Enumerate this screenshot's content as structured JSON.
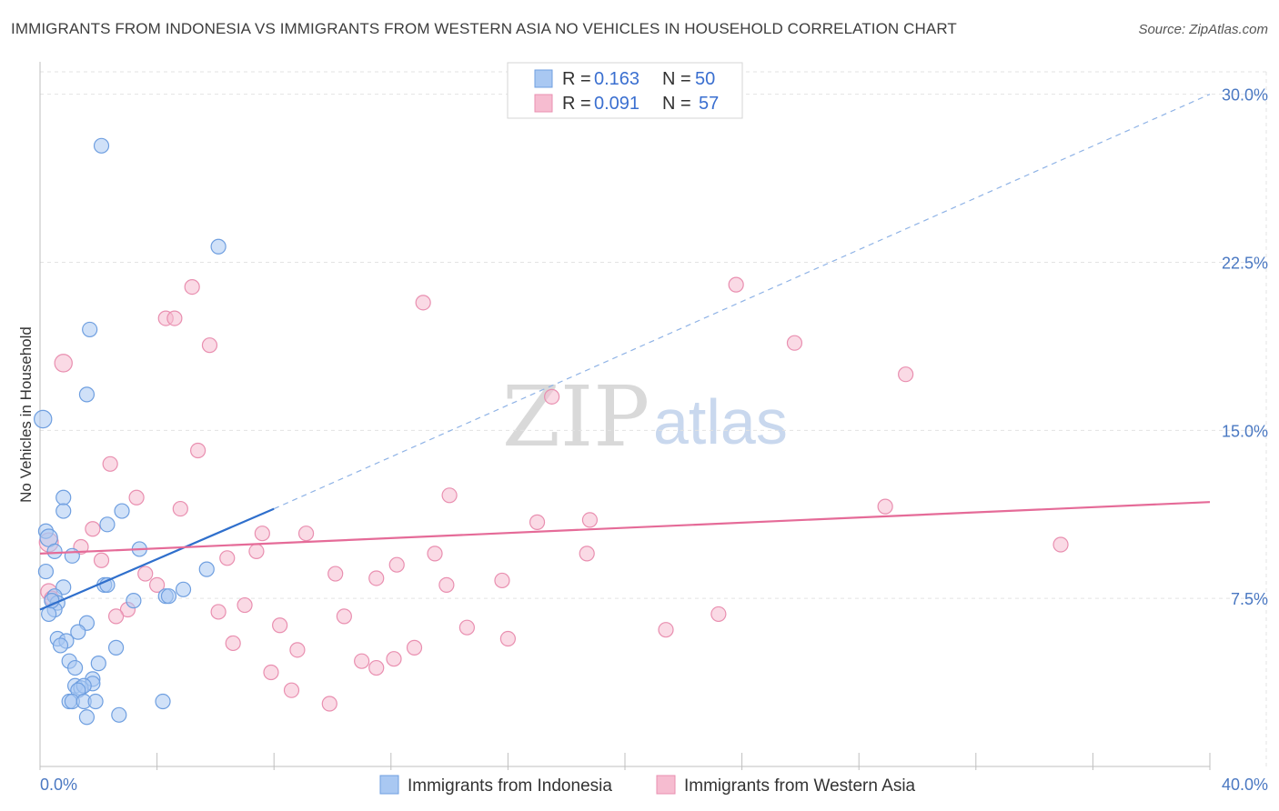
{
  "title": "IMMIGRANTS FROM INDONESIA VS IMMIGRANTS FROM WESTERN ASIA NO VEHICLES IN HOUSEHOLD CORRELATION CHART",
  "source": "Source: ZipAtlas.com",
  "watermark": {
    "zip": "ZIP",
    "atlas": "atlas"
  },
  "colors": {
    "blue_fill": "#a9c8f2",
    "blue_stroke": "#6f9fe0",
    "blue_line": "#2f6fcc",
    "pink_fill": "#f6bcd0",
    "pink_stroke": "#e98fb0",
    "pink_line": "#e56b98",
    "axis_text": "#4a78c2",
    "grid": "#e3e3e3"
  },
  "legend": {
    "r_label": "R =",
    "n_label": "N =",
    "rows": [
      {
        "r": "0.163",
        "n": "50",
        "color": "blue"
      },
      {
        "r": "0.091",
        "n": "57",
        "color": "pink"
      }
    ]
  },
  "chart_data": {
    "type": "scatter",
    "title": "IMMIGRANTS FROM INDONESIA VS IMMIGRANTS FROM WESTERN ASIA NO VEHICLES IN HOUSEHOLD CORRELATION CHART",
    "xlabel": "",
    "ylabel": "No Vehicles in Household",
    "xlim": [
      0,
      40
    ],
    "ylim": [
      0,
      31
    ],
    "x_tick_labels": [
      "0.0%",
      "40.0%"
    ],
    "y_ticks": [
      7.5,
      15.0,
      22.5,
      30.0
    ],
    "y_tick_labels": [
      "7.5%",
      "15.0%",
      "22.5%",
      "30.0%"
    ],
    "grid": true,
    "legend_position": "top-center",
    "series": [
      {
        "name": "Immigrants from Indonesia",
        "color": "blue",
        "trend": {
          "x0": 0.0,
          "y0": 7.0,
          "x1": 8.0,
          "y1": 11.5,
          "dashed_to_x": 40.0,
          "dashed_to_y": 30.0
        },
        "points": [
          {
            "x": 0.1,
            "y": 15.5,
            "s": 1.2
          },
          {
            "x": 2.1,
            "y": 27.7,
            "s": 1
          },
          {
            "x": 6.1,
            "y": 23.2,
            "s": 1
          },
          {
            "x": 1.7,
            "y": 19.5,
            "s": 1
          },
          {
            "x": 1.6,
            "y": 16.6,
            "s": 1
          },
          {
            "x": 0.8,
            "y": 12.0,
            "s": 1
          },
          {
            "x": 0.8,
            "y": 11.4,
            "s": 1
          },
          {
            "x": 2.8,
            "y": 11.4,
            "s": 1
          },
          {
            "x": 0.2,
            "y": 10.5,
            "s": 1
          },
          {
            "x": 2.3,
            "y": 10.8,
            "s": 1
          },
          {
            "x": 0.3,
            "y": 10.2,
            "s": 1.2
          },
          {
            "x": 0.5,
            "y": 9.6,
            "s": 1
          },
          {
            "x": 1.1,
            "y": 9.4,
            "s": 1
          },
          {
            "x": 3.4,
            "y": 9.7,
            "s": 1
          },
          {
            "x": 0.2,
            "y": 8.7,
            "s": 1
          },
          {
            "x": 5.7,
            "y": 8.8,
            "s": 1
          },
          {
            "x": 2.2,
            "y": 8.1,
            "s": 1
          },
          {
            "x": 2.3,
            "y": 8.1,
            "s": 1
          },
          {
            "x": 0.8,
            "y": 8.0,
            "s": 1
          },
          {
            "x": 4.9,
            "y": 7.9,
            "s": 1
          },
          {
            "x": 0.5,
            "y": 7.6,
            "s": 1
          },
          {
            "x": 0.6,
            "y": 7.3,
            "s": 1
          },
          {
            "x": 3.2,
            "y": 7.4,
            "s": 1
          },
          {
            "x": 4.3,
            "y": 7.6,
            "s": 1
          },
          {
            "x": 4.4,
            "y": 7.6,
            "s": 1
          },
          {
            "x": 0.5,
            "y": 7.0,
            "s": 1
          },
          {
            "x": 0.3,
            "y": 6.8,
            "s": 1
          },
          {
            "x": 1.6,
            "y": 6.4,
            "s": 1
          },
          {
            "x": 1.3,
            "y": 6.0,
            "s": 1
          },
          {
            "x": 0.6,
            "y": 5.7,
            "s": 1
          },
          {
            "x": 0.9,
            "y": 5.6,
            "s": 1
          },
          {
            "x": 0.7,
            "y": 5.4,
            "s": 1
          },
          {
            "x": 2.6,
            "y": 5.3,
            "s": 1
          },
          {
            "x": 1.0,
            "y": 4.7,
            "s": 1
          },
          {
            "x": 1.2,
            "y": 4.4,
            "s": 1
          },
          {
            "x": 2.0,
            "y": 4.6,
            "s": 1
          },
          {
            "x": 1.8,
            "y": 3.9,
            "s": 1
          },
          {
            "x": 1.2,
            "y": 3.6,
            "s": 1
          },
          {
            "x": 1.8,
            "y": 3.7,
            "s": 1
          },
          {
            "x": 1.4,
            "y": 3.5,
            "s": 1
          },
          {
            "x": 1.5,
            "y": 3.6,
            "s": 1
          },
          {
            "x": 1.3,
            "y": 3.4,
            "s": 1
          },
          {
            "x": 1.0,
            "y": 2.9,
            "s": 1
          },
          {
            "x": 1.1,
            "y": 2.9,
            "s": 1
          },
          {
            "x": 1.5,
            "y": 2.9,
            "s": 1
          },
          {
            "x": 1.9,
            "y": 2.9,
            "s": 1
          },
          {
            "x": 4.2,
            "y": 2.9,
            "s": 1
          },
          {
            "x": 1.6,
            "y": 2.2,
            "s": 1
          },
          {
            "x": 2.7,
            "y": 2.3,
            "s": 1
          },
          {
            "x": 0.4,
            "y": 7.4,
            "s": 1
          }
        ]
      },
      {
        "name": "Immigrants from Western Asia",
        "color": "pink",
        "trend": {
          "x0": 0.0,
          "y0": 9.5,
          "x1": 40.0,
          "y1": 11.8
        },
        "points": [
          {
            "x": 0.8,
            "y": 18.0,
            "s": 1.2
          },
          {
            "x": 5.2,
            "y": 21.4,
            "s": 1
          },
          {
            "x": 4.3,
            "y": 20.0,
            "s": 1
          },
          {
            "x": 4.6,
            "y": 20.0,
            "s": 1
          },
          {
            "x": 5.8,
            "y": 18.8,
            "s": 1
          },
          {
            "x": 13.1,
            "y": 20.7,
            "s": 1
          },
          {
            "x": 23.8,
            "y": 21.5,
            "s": 1
          },
          {
            "x": 25.8,
            "y": 18.9,
            "s": 1
          },
          {
            "x": 29.6,
            "y": 17.5,
            "s": 1
          },
          {
            "x": 17.5,
            "y": 16.5,
            "s": 1
          },
          {
            "x": 5.4,
            "y": 14.1,
            "s": 1
          },
          {
            "x": 2.4,
            "y": 13.5,
            "s": 1
          },
          {
            "x": 3.3,
            "y": 12.0,
            "s": 1
          },
          {
            "x": 4.8,
            "y": 11.5,
            "s": 1
          },
          {
            "x": 14.0,
            "y": 12.1,
            "s": 1
          },
          {
            "x": 28.9,
            "y": 11.6,
            "s": 1
          },
          {
            "x": 17.0,
            "y": 10.9,
            "s": 1
          },
          {
            "x": 18.8,
            "y": 11.0,
            "s": 1
          },
          {
            "x": 1.8,
            "y": 10.6,
            "s": 1
          },
          {
            "x": 7.6,
            "y": 10.4,
            "s": 1
          },
          {
            "x": 9.1,
            "y": 10.4,
            "s": 1
          },
          {
            "x": 0.3,
            "y": 10.0,
            "s": 1.3
          },
          {
            "x": 1.4,
            "y": 9.8,
            "s": 1
          },
          {
            "x": 34.9,
            "y": 9.9,
            "s": 1
          },
          {
            "x": 7.4,
            "y": 9.6,
            "s": 1
          },
          {
            "x": 13.5,
            "y": 9.5,
            "s": 1
          },
          {
            "x": 18.7,
            "y": 9.5,
            "s": 1
          },
          {
            "x": 2.1,
            "y": 9.2,
            "s": 1
          },
          {
            "x": 6.4,
            "y": 9.3,
            "s": 1
          },
          {
            "x": 12.2,
            "y": 9.0,
            "s": 1
          },
          {
            "x": 3.6,
            "y": 8.6,
            "s": 1
          },
          {
            "x": 10.1,
            "y": 8.6,
            "s": 1
          },
          {
            "x": 11.5,
            "y": 8.4,
            "s": 1
          },
          {
            "x": 15.8,
            "y": 8.3,
            "s": 1
          },
          {
            "x": 4.0,
            "y": 8.1,
            "s": 1
          },
          {
            "x": 13.9,
            "y": 8.1,
            "s": 1
          },
          {
            "x": 0.3,
            "y": 7.8,
            "s": 1.1
          },
          {
            "x": 3.0,
            "y": 7.0,
            "s": 1
          },
          {
            "x": 7.0,
            "y": 7.2,
            "s": 1
          },
          {
            "x": 6.1,
            "y": 6.9,
            "s": 1
          },
          {
            "x": 2.6,
            "y": 6.7,
            "s": 1
          },
          {
            "x": 10.4,
            "y": 6.7,
            "s": 1
          },
          {
            "x": 23.2,
            "y": 6.8,
            "s": 1
          },
          {
            "x": 8.2,
            "y": 6.3,
            "s": 1
          },
          {
            "x": 14.6,
            "y": 6.2,
            "s": 1
          },
          {
            "x": 21.4,
            "y": 6.1,
            "s": 1
          },
          {
            "x": 16.0,
            "y": 5.7,
            "s": 1
          },
          {
            "x": 6.6,
            "y": 5.5,
            "s": 1
          },
          {
            "x": 8.8,
            "y": 5.2,
            "s": 1
          },
          {
            "x": 12.8,
            "y": 5.3,
            "s": 1
          },
          {
            "x": 12.1,
            "y": 4.8,
            "s": 1
          },
          {
            "x": 11.0,
            "y": 4.7,
            "s": 1
          },
          {
            "x": 11.5,
            "y": 4.4,
            "s": 1
          },
          {
            "x": 7.9,
            "y": 4.2,
            "s": 1
          },
          {
            "x": 8.6,
            "y": 3.4,
            "s": 1
          },
          {
            "x": 9.9,
            "y": 2.8,
            "s": 1
          },
          {
            "x": 0.4,
            "y": 7.5,
            "s": 1
          }
        ]
      }
    ]
  }
}
